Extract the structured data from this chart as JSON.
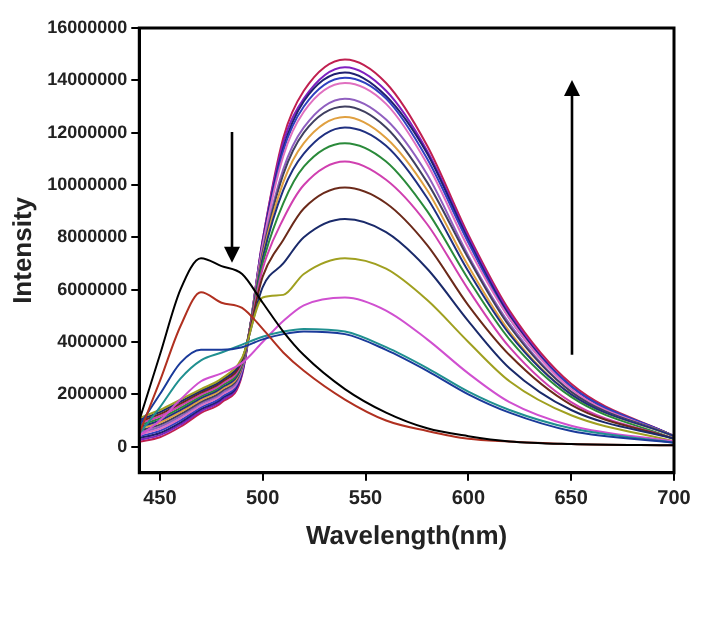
{
  "chart_data": {
    "type": "line",
    "xlabel": "Wavelength(nm)",
    "ylabel": "Intensity",
    "xlim": [
      440,
      700
    ],
    "ylim": [
      -1000000,
      16000000
    ],
    "xticks": [
      450,
      500,
      550,
      600,
      650,
      700
    ],
    "yticks": [
      0,
      2000000,
      4000000,
      6000000,
      8000000,
      10000000,
      12000000,
      14000000,
      16000000
    ],
    "grid": false,
    "legend": false,
    "marker": "none",
    "line_style": "solid",
    "x": [
      440,
      450,
      460,
      470,
      480,
      490,
      500,
      510,
      520,
      540,
      560,
      580,
      600,
      620,
      650,
      700
    ],
    "series": [
      {
        "color": "#000000",
        "values": [
          1000000,
          3500000,
          6000000,
          7200000,
          6900000,
          6600000,
          5500000,
          4400000,
          3500000,
          2200000,
          1300000,
          700000,
          400000,
          200000,
          100000,
          50000
        ]
      },
      {
        "color": "#b03020",
        "values": [
          500000,
          2500000,
          4600000,
          5900000,
          5500000,
          5300000,
          4500000,
          3600000,
          2900000,
          1800000,
          1000000,
          600000,
          300000,
          200000,
          100000,
          50000
        ]
      },
      {
        "color": "#1a3a9a",
        "values": [
          800000,
          2000000,
          3200000,
          3700000,
          3700000,
          3800000,
          4100000,
          4300000,
          4400000,
          4300000,
          3700000,
          2900000,
          2000000,
          1300000,
          600000,
          150000
        ]
      },
      {
        "color": "#209090",
        "values": [
          500000,
          1500000,
          2600000,
          3300000,
          3600000,
          3900000,
          4200000,
          4400000,
          4500000,
          4400000,
          3800000,
          3000000,
          2100000,
          1400000,
          700000,
          150000
        ]
      },
      {
        "color": "#d050d0",
        "values": [
          400000,
          1000000,
          1800000,
          2500000,
          2800000,
          3200000,
          4000000,
          4800000,
          5400000,
          5700000,
          5200000,
          4100000,
          2800000,
          1700000,
          800000,
          200000
        ]
      },
      {
        "color": "#a0a020",
        "values": [
          1100000,
          1400000,
          1800000,
          2200000,
          2600000,
          3400000,
          5700000,
          5800000,
          6600000,
          7200000,
          6800000,
          5600000,
          4000000,
          2500000,
          1200000,
          200000
        ]
      },
      {
        "color": "#1a2a6a",
        "values": [
          1030000,
          1320000,
          1720000,
          2130000,
          2530000,
          3350000,
          6100000,
          7000000,
          8000000,
          8700000,
          8200000,
          6800000,
          4800000,
          3000000,
          1400000,
          300000
        ]
      },
      {
        "color": "#6b2a1a",
        "values": [
          960000,
          1240000,
          1640000,
          2060000,
          2460000,
          3300000,
          6500000,
          7900000,
          9100000,
          9900000,
          9300000,
          7700000,
          5400000,
          3500000,
          1600000,
          300000
        ]
      },
      {
        "color": "#d040b0",
        "values": [
          890000,
          1160000,
          1560000,
          1990000,
          2390000,
          3250000,
          6800000,
          8700000,
          10000000,
          10900000,
          10200000,
          8500000,
          6000000,
          3800000,
          1700000,
          300000
        ]
      },
      {
        "color": "#2a8a3a",
        "values": [
          820000,
          1080000,
          1480000,
          1920000,
          2320000,
          3200000,
          7000000,
          9300000,
          10700000,
          11600000,
          10900000,
          9000000,
          6400000,
          4100000,
          1900000,
          300000
        ]
      },
      {
        "color": "#203080",
        "values": [
          750000,
          1000000,
          1400000,
          1850000,
          2250000,
          3150000,
          7200000,
          9800000,
          11200000,
          12200000,
          11500000,
          9500000,
          6700000,
          4300000,
          2000000,
          400000
        ]
      },
      {
        "color": "#e0a040",
        "values": [
          680000,
          920000,
          1320000,
          1780000,
          2180000,
          3100000,
          7300000,
          10100000,
          11600000,
          12600000,
          11800000,
          9800000,
          6900000,
          4400000,
          2000000,
          400000
        ]
      },
      {
        "color": "#404060",
        "values": [
          610000,
          840000,
          1240000,
          1710000,
          2110000,
          3050000,
          7400000,
          10400000,
          12000000,
          13000000,
          12200000,
          10100000,
          7200000,
          4600000,
          2100000,
          400000
        ]
      },
      {
        "color": "#9060c0",
        "values": [
          540000,
          760000,
          1160000,
          1640000,
          2040000,
          3000000,
          7500000,
          10600000,
          12200000,
          13300000,
          12500000,
          10400000,
          7300000,
          4700000,
          2100000,
          400000
        ]
      },
      {
        "color": "#e070c0",
        "values": [
          470000,
          680000,
          1080000,
          1570000,
          1970000,
          2950000,
          7700000,
          11100000,
          12800000,
          13900000,
          13100000,
          10800000,
          7600000,
          4900000,
          2200000,
          400000
        ]
      },
      {
        "color": "#3040c0",
        "values": [
          400000,
          600000,
          1000000,
          1500000,
          1900000,
          2900000,
          7700000,
          11300000,
          13000000,
          14100000,
          13300000,
          11000000,
          7800000,
          4900000,
          2300000,
          400000
        ]
      },
      {
        "color": "#202070",
        "values": [
          330000,
          520000,
          920000,
          1430000,
          1830000,
          2850000,
          7800000,
          11400000,
          13200000,
          14300000,
          13400000,
          11200000,
          7900000,
          5000000,
          2300000,
          400000
        ]
      },
      {
        "color": "#8020c0",
        "values": [
          260000,
          440000,
          840000,
          1360000,
          1760000,
          2800000,
          7900000,
          11600000,
          13300000,
          14500000,
          13600000,
          11300000,
          8000000,
          5100000,
          2300000,
          400000
        ]
      },
      {
        "color": "#c02050",
        "values": [
          190000,
          360000,
          760000,
          1290000,
          1690000,
          2750000,
          7900000,
          11800000,
          13600000,
          14800000,
          13900000,
          11500000,
          8100000,
          5200000,
          2400000,
          400000
        ]
      }
    ]
  }
}
